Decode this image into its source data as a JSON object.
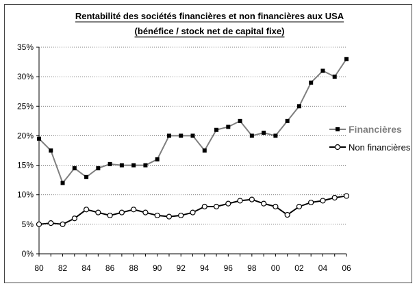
{
  "chart_data": {
    "type": "line",
    "title": "Rentabilité des sociétés financières et non financières aux USA",
    "subtitle": "(bénéfice / stock net de capital fixe)",
    "xlabel": "",
    "ylabel": "",
    "x": [
      1980,
      1981,
      1982,
      1983,
      1984,
      1985,
      1986,
      1987,
      1988,
      1989,
      1990,
      1991,
      1992,
      1993,
      1994,
      1995,
      1996,
      1997,
      1998,
      1999,
      2000,
      2001,
      2002,
      2003,
      2004,
      2005,
      2006
    ],
    "x_tick_labels": [
      "80",
      "82",
      "84",
      "86",
      "88",
      "90",
      "92",
      "94",
      "96",
      "98",
      "00",
      "02",
      "04",
      "06"
    ],
    "y_tick_labels": [
      "0%",
      "5%",
      "10%",
      "15%",
      "20%",
      "25%",
      "30%",
      "35%"
    ],
    "ylim": [
      0,
      35
    ],
    "grid": "horizontal dotted",
    "legend_position": "right",
    "series": [
      {
        "name": "Financières",
        "color": "#7f7f7f",
        "marker": "filled-square",
        "values": [
          19.5,
          17.5,
          12,
          14.5,
          13,
          14.5,
          15.2,
          15,
          15,
          15,
          16,
          20,
          20,
          20,
          17.5,
          21,
          21.5,
          22.5,
          20,
          20.5,
          20,
          22.5,
          25,
          29,
          31,
          30,
          33
        ]
      },
      {
        "name": "Non financières",
        "color": "#000000",
        "marker": "open-circle",
        "values": [
          5,
          5.2,
          5,
          6,
          7.5,
          7,
          6.5,
          7,
          7.5,
          7,
          6.5,
          6.3,
          6.5,
          7,
          8,
          8,
          8.5,
          9,
          9.2,
          8.5,
          8,
          6.6,
          8,
          8.7,
          9,
          9.5,
          9.8
        ]
      }
    ]
  }
}
